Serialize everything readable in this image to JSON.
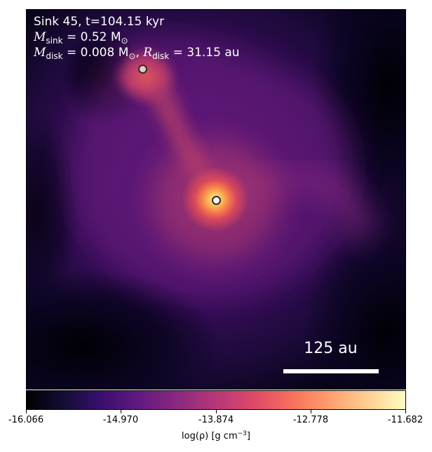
{
  "annotation": {
    "title": "Sink 45, t=104.15 kyr",
    "msink_symbol": "M",
    "msink_subscript": "sink",
    "msink_value": " = 0.52 M",
    "msink_unit_sub": "⊙",
    "mdisk_symbol": "M",
    "mdisk_subscript": "disk",
    "mdisk_value": " = 0.008 M",
    "mdisk_unit_sub": "⊙",
    "rdisk_sep": ", ",
    "rdisk_symbol": "R",
    "rdisk_subscript": "disk",
    "rdisk_value": " = 31.15 au"
  },
  "scalebar": {
    "label": "125 au"
  },
  "colorbar": {
    "colormap": "inferno",
    "min": -16.066,
    "max": -11.682,
    "ticks": [
      "-16.066",
      "-14.970",
      "-13.874",
      "-12.778",
      "-11.682"
    ],
    "label_main": "log(ρ) [g cm",
    "label_exp": "−3",
    "label_close": "]"
  },
  "colors": {
    "background_low": "#000004",
    "filament": "#c8455f",
    "sink_primary_fill": "#f4f4f4",
    "sink_secondary_fill": "#f1c7c7",
    "sink_edge": "#2b2b2b"
  }
}
